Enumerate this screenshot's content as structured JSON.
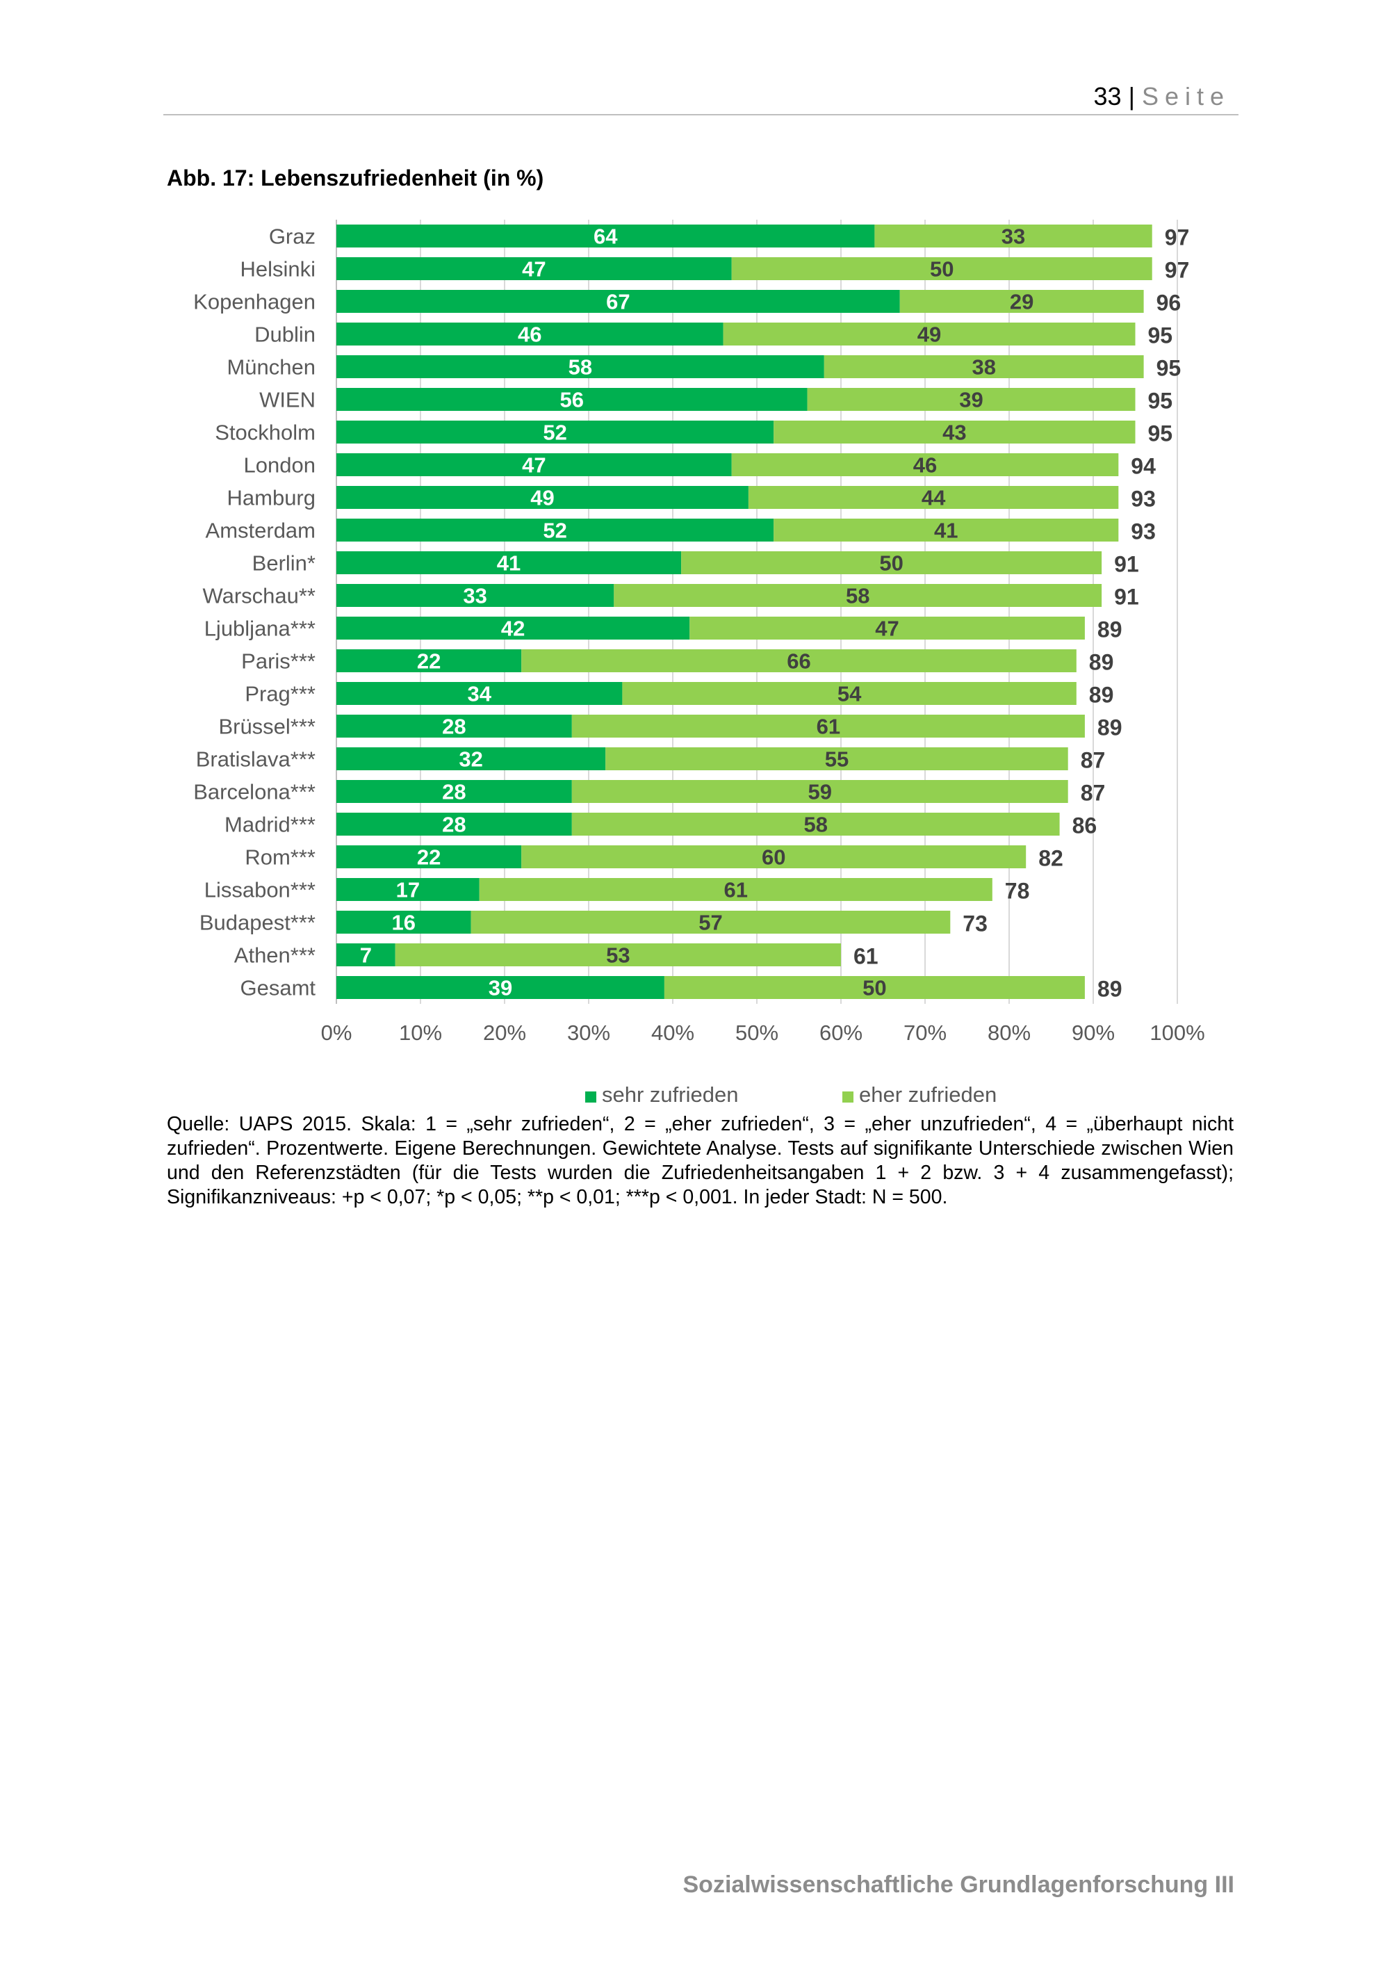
{
  "header": {
    "page_number": "33",
    "separator": "|",
    "page_word": "Seite"
  },
  "figure": {
    "caption": "Abb. 17: Lebenszufriedenheit (in %)"
  },
  "chart_data": {
    "type": "bar",
    "orientation": "horizontal",
    "stacked": true,
    "categories": [
      "Graz",
      "Helsinki",
      "Kopenhagen",
      "Dublin",
      "München",
      "WIEN",
      "Stockholm",
      "London",
      "Hamburg",
      "Amsterdam",
      "Berlin*",
      "Warschau**",
      "Ljubljana***",
      "Paris***",
      "Prag***",
      "Brüssel***",
      "Bratislava***",
      "Barcelona***",
      "Madrid***",
      "Rom***",
      "Lissabon***",
      "Budapest***",
      "Athen***",
      "Gesamt"
    ],
    "series": [
      {
        "name": "sehr zufrieden",
        "color": "#00b050",
        "values": [
          64,
          47,
          67,
          46,
          58,
          56,
          52,
          47,
          49,
          52,
          41,
          33,
          42,
          22,
          34,
          28,
          32,
          28,
          28,
          22,
          17,
          16,
          7,
          39
        ]
      },
      {
        "name": "eher zufrieden",
        "color": "#92d050",
        "values": [
          33,
          50,
          29,
          49,
          38,
          39,
          43,
          46,
          44,
          41,
          50,
          58,
          47,
          66,
          54,
          61,
          55,
          59,
          58,
          60,
          61,
          57,
          53,
          50
        ]
      }
    ],
    "totals": [
      97,
      97,
      96,
      95,
      95,
      95,
      95,
      94,
      93,
      93,
      91,
      91,
      89,
      89,
      89,
      89,
      87,
      87,
      86,
      82,
      78,
      73,
      61,
      89
    ],
    "xlim": [
      0,
      100
    ],
    "x_ticks": [
      "0%",
      "10%",
      "20%",
      "30%",
      "40%",
      "50%",
      "60%",
      "70%",
      "80%",
      "90%",
      "100%"
    ],
    "grid": true,
    "legend_position": "bottom"
  },
  "note": {
    "text": "Quelle: UAPS 2015. Skala: 1 = „sehr zufrieden“, 2 = „eher zufrieden“, 3 = „eher unzufrieden“, 4 = „überhaupt nicht zufrieden“. Prozentwerte. Eigene Berechnungen. Gewichtete Analyse. Tests auf signifikante Unterschiede zwischen Wien und den Referenzstädten (für die Tests wurden die Zufriedenheitsangaben 1 + 2 bzw. 3 + 4 zusammengefasst); Signifikanzniveaus: +p < 0,07; *p < 0,05; **p < 0,01; ***p < 0,001. In jeder Stadt: N = 500."
  },
  "footer": {
    "text": "Sozialwissenschaftliche Grundlagenforschung III"
  }
}
